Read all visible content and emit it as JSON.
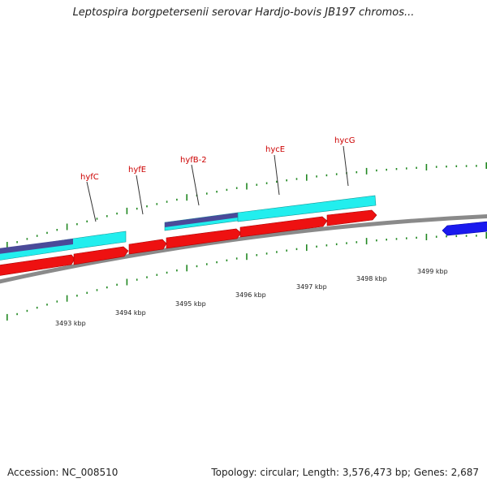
{
  "title": "Leptospira borgpetersenii serovar Hardjo-bovis JB197 chromos...",
  "footer": {
    "accession": "Accession: NC_008510",
    "stats": "Topology: circular; Length: 3,576,473 bp; Genes: 2,687"
  },
  "colors": {
    "backbone": "#8a8a8a",
    "cds_red": "#ee1111",
    "cds_cyan": "#22eeee",
    "cds_purple": "#4a4a99",
    "cds_blue": "#1a1aee",
    "tick_green": "#228822",
    "label_red": "#cc0000"
  },
  "genes": [
    {
      "name": "hyfC"
    },
    {
      "name": "hyfE"
    },
    {
      "name": "hyfB-2"
    },
    {
      "name": "hycE"
    },
    {
      "name": "hycG"
    }
  ],
  "scale_ticks": [
    {
      "label": "3493 kbp"
    },
    {
      "label": "3494 kbp"
    },
    {
      "label": "3495 kbp"
    },
    {
      "label": "3496 kbp"
    },
    {
      "label": "3497 kbp"
    },
    {
      "label": "3498 kbp"
    },
    {
      "label": "3499 kbp"
    }
  ]
}
